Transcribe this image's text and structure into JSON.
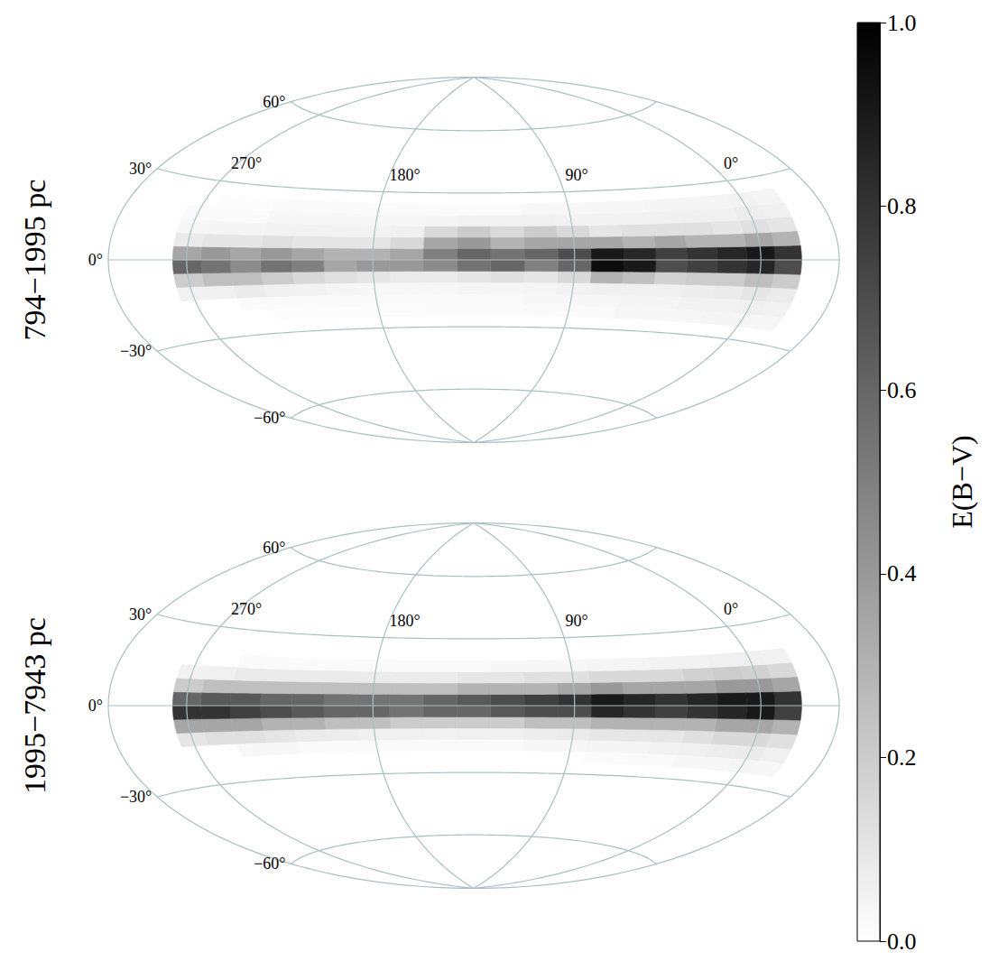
{
  "chart_data": {
    "type": "heatmap",
    "grid": true,
    "panels": [
      {
        "title": "794−1995 pc",
        "xlim": [
          315,
          -45
        ],
        "ylim": [
          -90,
          90
        ],
        "xticks": [
          {
            "value": 270,
            "label": "270°"
          },
          {
            "value": 180,
            "label": "180°"
          },
          {
            "value": 90,
            "label": "90°"
          },
          {
            "value": 0,
            "label": "0°"
          }
        ],
        "yticks": [
          {
            "value": 60,
            "label": "60°"
          },
          {
            "value": 30,
            "label": "30°"
          },
          {
            "value": 0,
            "label": "0°"
          },
          {
            "value": -30,
            "label": "−30°"
          },
          {
            "value": -60,
            "label": "−60°"
          }
        ],
        "x": [
          -15,
          0,
          15,
          30,
          45,
          60,
          75,
          90,
          105,
          120,
          135,
          150,
          165,
          180,
          195,
          210,
          225,
          240,
          255,
          270
        ],
        "y": [
          -22.5,
          -17.5,
          -12.5,
          -7.5,
          -2.5,
          2.5,
          7.5,
          12.5,
          17.5,
          22.5
        ],
        "values": [
          [
            0.03,
            0.05,
            0.08,
            0.2,
            0.7,
            0.8,
            0.3,
            0.1,
            0.06,
            0.04
          ],
          [
            0.04,
            0.06,
            0.1,
            0.25,
            0.85,
            0.9,
            0.35,
            0.12,
            0.07,
            0.05
          ],
          [
            0.04,
            0.05,
            0.08,
            0.2,
            0.8,
            0.85,
            0.3,
            0.1,
            0.06,
            0.04
          ],
          [
            0.03,
            0.05,
            0.07,
            0.2,
            0.75,
            0.8,
            0.3,
            0.12,
            0.06,
            0.04
          ],
          [
            0.03,
            0.04,
            0.06,
            0.18,
            0.7,
            0.75,
            0.35,
            0.12,
            0.06,
            0.04
          ],
          [
            0.03,
            0.04,
            0.06,
            0.25,
            0.9,
            0.85,
            0.3,
            0.12,
            0.05,
            0.03
          ],
          [
            0.02,
            0.03,
            0.06,
            0.3,
            0.95,
            0.9,
            0.35,
            0.1,
            0.05,
            0.03
          ],
          [
            0.02,
            0.03,
            0.05,
            0.15,
            0.6,
            0.7,
            0.35,
            0.15,
            0.05,
            0.03
          ],
          [
            0.02,
            0.03,
            0.04,
            0.1,
            0.5,
            0.6,
            0.35,
            0.2,
            0.06,
            0.03
          ],
          [
            0.02,
            0.02,
            0.04,
            0.12,
            0.6,
            0.55,
            0.3,
            0.15,
            0.05,
            0.02
          ],
          [
            0.02,
            0.02,
            0.04,
            0.1,
            0.55,
            0.6,
            0.4,
            0.2,
            0.05,
            0.02
          ],
          [
            0.02,
            0.02,
            0.03,
            0.08,
            0.45,
            0.5,
            0.35,
            0.15,
            0.04,
            0.02
          ],
          [
            0.01,
            0.02,
            0.03,
            0.08,
            0.4,
            0.35,
            0.15,
            0.06,
            0.03,
            0.02
          ],
          [
            0.01,
            0.02,
            0.03,
            0.1,
            0.4,
            0.3,
            0.1,
            0.05,
            0.03,
            0.02
          ],
          [
            0.01,
            0.02,
            0.04,
            0.12,
            0.35,
            0.3,
            0.1,
            0.05,
            0.03,
            0.02
          ],
          [
            0.01,
            0.02,
            0.05,
            0.15,
            0.5,
            0.35,
            0.1,
            0.05,
            0.03,
            0.02
          ],
          [
            0.01,
            0.02,
            0.06,
            0.2,
            0.55,
            0.4,
            0.12,
            0.05,
            0.03,
            0.02
          ],
          [
            null,
            0.02,
            0.08,
            0.25,
            0.45,
            0.35,
            0.1,
            0.04,
            0.02,
            0.01
          ],
          [
            null,
            null,
            0.06,
            0.25,
            0.55,
            0.4,
            0.1,
            0.04,
            0.02,
            0.01
          ],
          [
            null,
            null,
            0.05,
            0.2,
            0.6,
            0.35,
            0.08,
            0.03,
            0.02,
            null
          ]
        ]
      },
      {
        "title": "1995−7943 pc",
        "xlim": [
          315,
          -45
        ],
        "ylim": [
          -90,
          90
        ],
        "xticks": [
          {
            "value": 270,
            "label": "270°"
          },
          {
            "value": 180,
            "label": "180°"
          },
          {
            "value": 90,
            "label": "90°"
          },
          {
            "value": 0,
            "label": "0°"
          }
        ],
        "yticks": [
          {
            "value": 60,
            "label": "60°"
          },
          {
            "value": 30,
            "label": "30°"
          },
          {
            "value": 0,
            "label": "0°"
          },
          {
            "value": -30,
            "label": "−30°"
          },
          {
            "value": -60,
            "label": "−60°"
          }
        ],
        "x": [
          -15,
          0,
          15,
          30,
          45,
          60,
          75,
          90,
          105,
          120,
          135,
          150,
          165,
          180,
          195,
          210,
          225,
          240,
          255,
          270
        ],
        "y": [
          -22.5,
          -17.5,
          -12.5,
          -7.5,
          -2.5,
          2.5,
          7.5,
          12.5,
          17.5,
          22.5
        ],
        "values": [
          [
            0.03,
            0.06,
            0.12,
            0.3,
            0.75,
            0.8,
            0.35,
            0.15,
            0.05,
            null
          ],
          [
            0.04,
            0.08,
            0.15,
            0.35,
            0.9,
            0.9,
            0.4,
            0.18,
            0.06,
            null
          ],
          [
            0.03,
            0.07,
            0.15,
            0.35,
            0.85,
            0.9,
            0.4,
            0.2,
            0.06,
            null
          ],
          [
            0.03,
            0.06,
            0.12,
            0.3,
            0.8,
            0.85,
            0.35,
            0.18,
            0.05,
            null
          ],
          [
            0.02,
            0.05,
            0.1,
            0.3,
            0.75,
            0.8,
            0.35,
            0.15,
            0.05,
            null
          ],
          [
            0.02,
            0.04,
            0.1,
            0.3,
            0.8,
            0.85,
            0.35,
            0.15,
            0.04,
            null
          ],
          [
            0.02,
            0.04,
            0.1,
            0.3,
            0.85,
            0.9,
            0.4,
            0.15,
            0.04,
            null
          ],
          [
            null,
            0.03,
            0.08,
            0.25,
            0.7,
            0.8,
            0.35,
            0.12,
            0.03,
            null
          ],
          [
            null,
            0.03,
            0.07,
            0.25,
            0.7,
            0.75,
            0.3,
            0.12,
            0.03,
            null
          ],
          [
            null,
            0.02,
            0.06,
            0.2,
            0.65,
            0.7,
            0.3,
            0.1,
            0.03,
            null
          ],
          [
            null,
            0.02,
            0.06,
            0.2,
            0.6,
            0.65,
            0.3,
            0.1,
            0.02,
            null
          ],
          [
            null,
            0.02,
            0.05,
            0.2,
            0.6,
            0.6,
            0.25,
            0.08,
            0.02,
            null
          ],
          [
            null,
            0.02,
            0.06,
            0.2,
            0.55,
            0.55,
            0.25,
            0.08,
            0.02,
            null
          ],
          [
            null,
            0.02,
            0.06,
            0.25,
            0.6,
            0.55,
            0.25,
            0.08,
            0.02,
            null
          ],
          [
            null,
            0.02,
            0.07,
            0.25,
            0.6,
            0.55,
            0.25,
            0.08,
            0.02,
            null
          ],
          [
            null,
            0.02,
            0.08,
            0.3,
            0.65,
            0.6,
            0.25,
            0.08,
            0.02,
            null
          ],
          [
            null,
            0.03,
            0.1,
            0.3,
            0.7,
            0.6,
            0.25,
            0.08,
            0.02,
            null
          ],
          [
            null,
            0.03,
            0.12,
            0.35,
            0.75,
            0.65,
            0.25,
            0.08,
            0.02,
            null
          ],
          [
            null,
            null,
            0.12,
            0.35,
            0.8,
            0.65,
            0.25,
            0.06,
            null,
            null
          ],
          [
            null,
            null,
            0.1,
            0.35,
            0.8,
            0.6,
            0.2,
            0.05,
            null,
            null
          ]
        ]
      }
    ],
    "colorbar": {
      "label": "E(B−V)",
      "range": [
        0,
        1
      ],
      "ticks": [
        {
          "value": 0,
          "label": "0.0"
        },
        {
          "value": 0.2,
          "label": "0.2"
        },
        {
          "value": 0.4,
          "label": "0.4"
        },
        {
          "value": 0.6,
          "label": "0.6"
        },
        {
          "value": 0.8,
          "label": "0.8"
        },
        {
          "value": 1,
          "label": "1.0"
        }
      ]
    }
  }
}
